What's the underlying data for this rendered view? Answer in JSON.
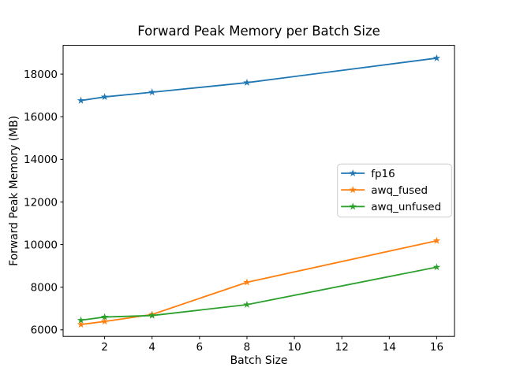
{
  "chart_data": {
    "type": "line",
    "title": "Forward Peak Memory per Batch Size",
    "xlabel": "Batch Size",
    "ylabel": "Forward Peak Memory (MB)",
    "x": [
      1,
      2,
      4,
      8,
      16
    ],
    "series": [
      {
        "name": "fp16",
        "color": "#1f77b4",
        "marker": "star",
        "values": [
          16760,
          16930,
          17150,
          17600,
          18750
        ]
      },
      {
        "name": "awq_fused",
        "color": "#ff7f0e",
        "marker": "star",
        "values": [
          6250,
          6390,
          6720,
          8230,
          10180
        ]
      },
      {
        "name": "awq_unfused",
        "color": "#2ca02c",
        "marker": "star",
        "values": [
          6450,
          6600,
          6670,
          7180,
          8940
        ]
      }
    ],
    "xlim": [
      0.25,
      16.75
    ],
    "ylim": [
      5690,
      19350
    ],
    "xticks": [
      2,
      4,
      6,
      8,
      10,
      12,
      14,
      16
    ],
    "yticks": [
      6000,
      8000,
      10000,
      12000,
      14000,
      16000,
      18000
    ],
    "grid": false,
    "legend_position": "center-right",
    "background": "#ffffff",
    "spine_color": "#000000",
    "legend_border_color": "#cccccc"
  }
}
